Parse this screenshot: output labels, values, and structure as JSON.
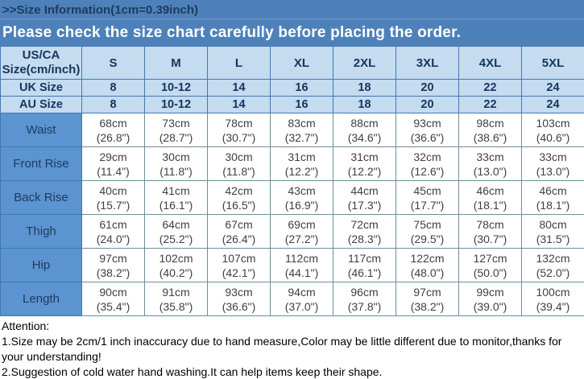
{
  "banner": {
    "title": ">>Size Information(1cm=0.39inch)",
    "subtitle": "Please check the size chart carefully before placing the order."
  },
  "size_table": {
    "corner_header_line1": "US/CA",
    "corner_header_line2": "Size(cm/inch)",
    "size_headers": [
      "S",
      "M",
      "L",
      "XL",
      "2XL",
      "3XL",
      "4XL",
      "5XL"
    ],
    "region_rows": [
      {
        "label": "UK Size",
        "values": [
          "8",
          "10-12",
          "14",
          "16",
          "18",
          "20",
          "22",
          "24"
        ]
      },
      {
        "label": "AU Size",
        "values": [
          "8",
          "10-12",
          "14",
          "16",
          "18",
          "20",
          "22",
          "24"
        ]
      }
    ],
    "measurement_rows": [
      {
        "label": "Waist",
        "cm": [
          "68cm",
          "73cm",
          "78cm",
          "83cm",
          "88cm",
          "93cm",
          "98cm",
          "103cm"
        ],
        "inch": [
          "(26.8\")",
          "(28.7\")",
          "(30.7\")",
          "(32.7\")",
          "(34.6\")",
          "(36.6\")",
          "(38.6\")",
          "(40.6\")"
        ]
      },
      {
        "label": "Front Rise",
        "cm": [
          "29cm",
          "30cm",
          "30cm",
          "31cm",
          "31cm",
          "32cm",
          "33cm",
          "33cm"
        ],
        "inch": [
          "(11.4\")",
          "(11.8\")",
          "(11.8\")",
          "(12.2\")",
          "(12.2\")",
          "(12.6\")",
          "(13.0\")",
          "(13.0\")"
        ]
      },
      {
        "label": "Back Rise",
        "cm": [
          "40cm",
          "41cm",
          "42cm",
          "43cm",
          "44cm",
          "45cm",
          "46cm",
          "46cm"
        ],
        "inch": [
          "(15.7\")",
          "(16.1\")",
          "(16.5\")",
          "(16.9\")",
          "(17.3\")",
          "(17.7\")",
          "(18.1\")",
          "(18.1\")"
        ]
      },
      {
        "label": "Thigh",
        "cm": [
          "61cm",
          "64cm",
          "67cm",
          "69cm",
          "72cm",
          "75cm",
          "78cm",
          "80cm"
        ],
        "inch": [
          "(24.0\")",
          "(25.2\")",
          "(26.4\")",
          "(27.2\")",
          "(28.3\")",
          "(29.5\")",
          "(30.7\")",
          "(31.5\")"
        ]
      },
      {
        "label": "Hip",
        "cm": [
          "97cm",
          "102cm",
          "107cm",
          "112cm",
          "117cm",
          "122cm",
          "127cm",
          "132cm"
        ],
        "inch": [
          "(38.2\")",
          "(40.2\")",
          "(42.1\")",
          "(44.1\")",
          "(46.1\")",
          "(48.0\")",
          "(50.0\")",
          "(52.0\")"
        ]
      },
      {
        "label": "Length",
        "cm": [
          "90cm",
          "91cm",
          "93cm",
          "94cm",
          "96cm",
          "97cm",
          "99cm",
          "100cm"
        ],
        "inch": [
          "(35.4\")",
          "(35.8\")",
          "(36.6\")",
          "(37.0\")",
          "(37.8\")",
          "(38.2\")",
          "(39.0\")",
          "(39.4\")"
        ]
      }
    ]
  },
  "attention": {
    "heading": "Attention:",
    "notes": [
      "1.Size may be 2cm/1 inch inaccuracy due to hand measure,Color may be little different due to monitor,thanks for your understanding!",
      "2.Suggestion of cold water hand washing.It can help items keep their shape."
    ]
  },
  "colors": {
    "banner_bg": "#4e81ba",
    "banner_title": "#1d3a5f",
    "banner_subtitle": "#ffffff",
    "header_cell_bg": "#c4dbf0",
    "header_text": "#16355c",
    "header_border": "#4478b0",
    "label_cell_bg": "#5b94d0",
    "label_text": "#1e3c60",
    "body_border": "#6e8e9c",
    "cell_text": "#3f3f3f",
    "attention_text": "#010101"
  }
}
